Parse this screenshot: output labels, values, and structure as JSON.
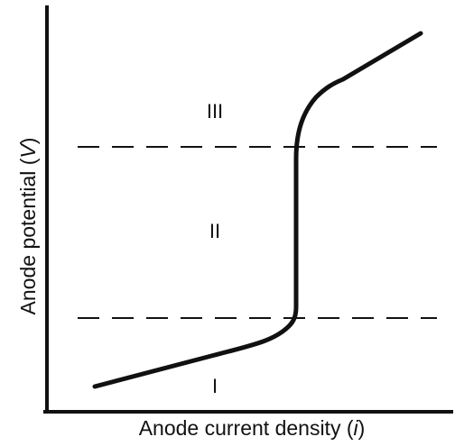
{
  "diagram": {
    "regions": [
      "I",
      "II",
      "III"
    ],
    "xlabel": {
      "prefix": "Anode current density (",
      "symbol": "i",
      "suffix": ")"
    },
    "ylabel": {
      "prefix": "Anode potential (",
      "symbol": "V",
      "suffix": ")"
    },
    "stroke_color": "#111111",
    "background_color": "#ffffff"
  }
}
